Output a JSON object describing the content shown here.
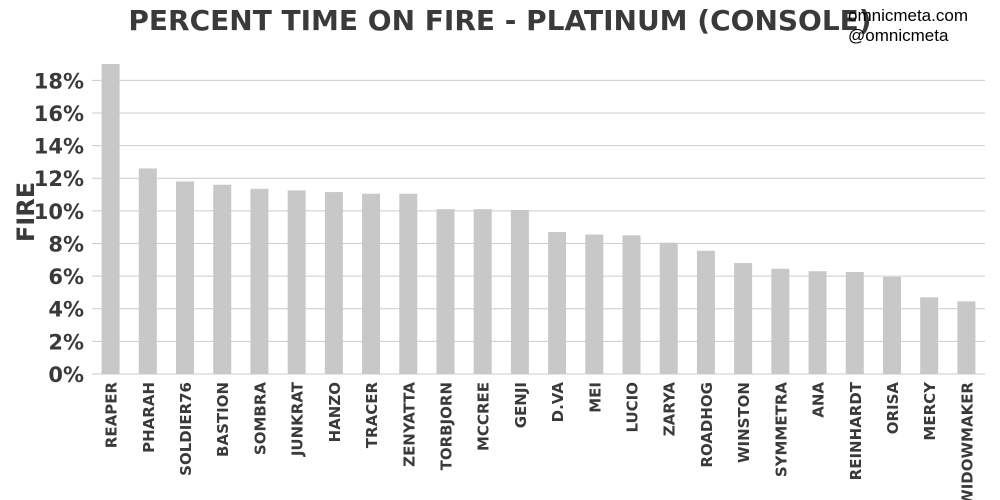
{
  "header": {
    "site": "omnicmeta.com",
    "handle": "@omnicmeta"
  },
  "chart_data": {
    "type": "bar",
    "title": "PERCENT TIME ON FIRE - PLATINUM (CONSOLE)",
    "xlabel": "",
    "ylabel": "FIRE",
    "ylim": [
      0,
      19
    ],
    "yticks": [
      0,
      2,
      4,
      6,
      8,
      10,
      12,
      14,
      16,
      18
    ],
    "ytick_labels": [
      "0%",
      "2%",
      "4%",
      "6%",
      "8%",
      "10%",
      "12%",
      "14%",
      "16%",
      "18%"
    ],
    "grid": true,
    "bar_color": "#c8c8c8",
    "grid_color": "#cccccc",
    "text_color": "#3a3a3a",
    "categories": [
      "REAPER",
      "PHARAH",
      "SOLDIER76",
      "BASTION",
      "SOMBRA",
      "JUNKRAT",
      "HANZO",
      "TRACER",
      "ZENYATTA",
      "TORBJORN",
      "MCCREE",
      "GENJI",
      "D.VA",
      "MEI",
      "LUCIO",
      "ZARYA",
      "ROADHOG",
      "WINSTON",
      "SYMMETRA",
      "ANA",
      "REINHARDT",
      "ORISA",
      "MERCY",
      "WIDOWMAKER"
    ],
    "values": [
      19.0,
      12.6,
      11.8,
      11.6,
      11.35,
      11.25,
      11.15,
      11.05,
      11.05,
      10.1,
      10.1,
      10.05,
      8.7,
      8.55,
      8.5,
      8.05,
      7.55,
      6.8,
      6.45,
      6.3,
      6.25,
      5.95,
      4.7,
      4.45
    ]
  }
}
